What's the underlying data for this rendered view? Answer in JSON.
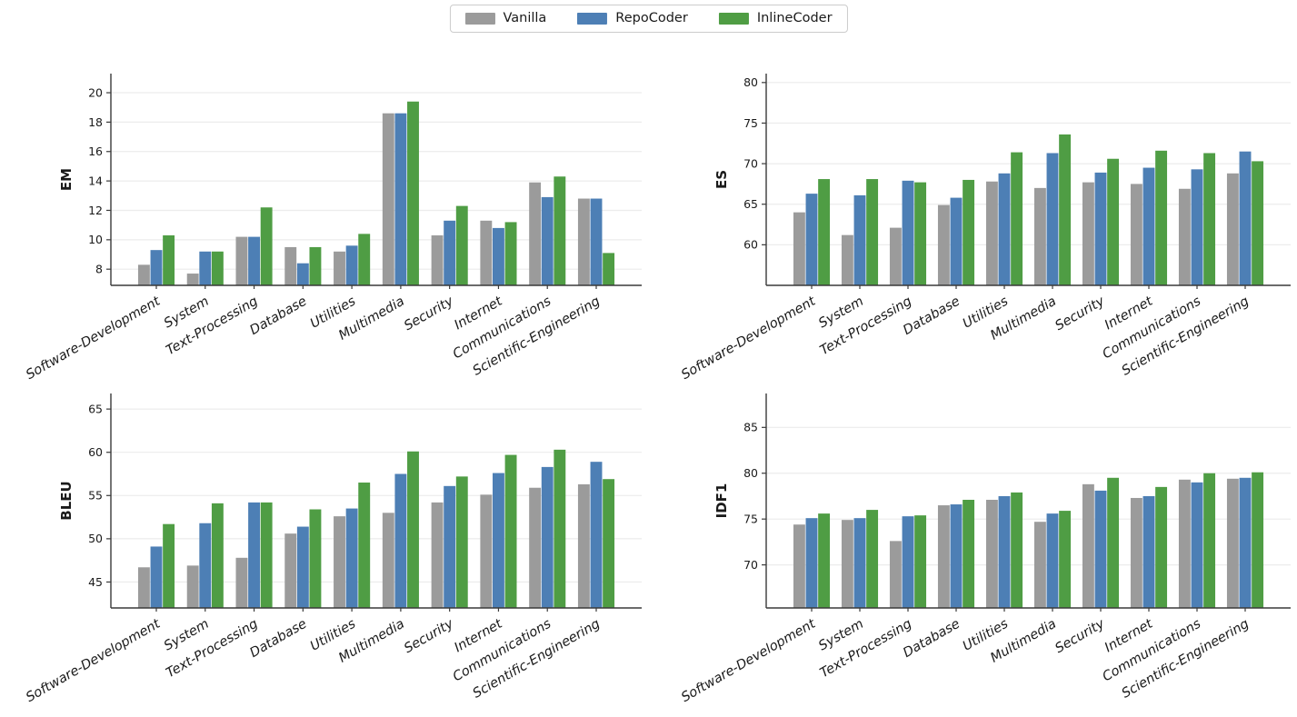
{
  "figure": {
    "background": "#ffffff"
  },
  "legend": {
    "items": [
      {
        "label": "Vanilla",
        "color": "#9b9b9b"
      },
      {
        "label": "RepoCoder",
        "color": "#4d7fb5"
      },
      {
        "label": "InlineCoder",
        "color": "#4f9d44"
      }
    ]
  },
  "style_colors": {
    "grid": "#ececec",
    "spine": "#3a3a3a",
    "tick_text": "#1a1a1a"
  },
  "chart_data": [
    {
      "type": "bar",
      "ylabel": "EM",
      "categories": [
        "Software-Development",
        "System",
        "Text-Processing",
        "Database",
        "Utilities",
        "Multimedia",
        "Security",
        "Internet",
        "Communications",
        "Scientific-Engineering"
      ],
      "series": [
        {
          "name": "Vanilla",
          "color": "#9b9b9b",
          "values": [
            8.3,
            7.7,
            10.2,
            9.5,
            9.2,
            18.6,
            10.3,
            11.3,
            13.9,
            12.8
          ]
        },
        {
          "name": "RepoCoder",
          "color": "#4d7fb5",
          "values": [
            9.3,
            9.2,
            10.2,
            8.4,
            9.6,
            18.6,
            11.3,
            10.8,
            12.9,
            12.8
          ]
        },
        {
          "name": "InlineCoder",
          "color": "#4f9d44",
          "values": [
            10.3,
            9.2,
            12.2,
            9.5,
            10.4,
            19.4,
            12.3,
            11.2,
            14.3,
            9.1
          ]
        }
      ],
      "ylim": [
        6.9,
        21.3
      ],
      "yticks": [
        8,
        10,
        12,
        14,
        16,
        18,
        20
      ],
      "grid": true,
      "legend_position": "figure-top-center"
    },
    {
      "type": "bar",
      "ylabel": "ES",
      "categories": [
        "Software-Development",
        "System",
        "Text-Processing",
        "Database",
        "Utilities",
        "Multimedia",
        "Security",
        "Internet",
        "Communications",
        "Scientific-Engineering"
      ],
      "series": [
        {
          "name": "Vanilla",
          "color": "#9b9b9b",
          "values": [
            64.0,
            61.2,
            62.1,
            64.9,
            67.8,
            67.0,
            67.7,
            67.5,
            66.9,
            68.8
          ]
        },
        {
          "name": "RepoCoder",
          "color": "#4d7fb5",
          "values": [
            66.3,
            66.1,
            67.9,
            65.8,
            68.8,
            71.3,
            68.9,
            69.5,
            69.3,
            71.5
          ]
        },
        {
          "name": "InlineCoder",
          "color": "#4f9d44",
          "values": [
            68.1,
            68.1,
            67.7,
            68.0,
            71.4,
            73.6,
            70.6,
            71.6,
            71.3,
            70.3
          ]
        }
      ],
      "ylim": [
        55,
        81.1
      ],
      "yticks": [
        60,
        65,
        70,
        75,
        80
      ],
      "grid": true,
      "legend_position": "figure-top-center"
    },
    {
      "type": "bar",
      "ylabel": "BLEU",
      "categories": [
        "Software-Development",
        "System",
        "Text-Processing",
        "Database",
        "Utilities",
        "Multimedia",
        "Security",
        "Internet",
        "Communications",
        "Scientific-Engineering"
      ],
      "series": [
        {
          "name": "Vanilla",
          "color": "#9b9b9b",
          "values": [
            46.7,
            46.9,
            47.8,
            50.6,
            52.6,
            53.0,
            54.2,
            55.1,
            55.9,
            56.3
          ]
        },
        {
          "name": "RepoCoder",
          "color": "#4d7fb5",
          "values": [
            49.1,
            51.8,
            54.2,
            51.4,
            53.5,
            57.5,
            56.1,
            57.6,
            58.3,
            58.9
          ]
        },
        {
          "name": "InlineCoder",
          "color": "#4f9d44",
          "values": [
            51.7,
            54.1,
            54.2,
            53.4,
            56.5,
            60.1,
            57.2,
            59.7,
            60.3,
            56.9
          ]
        }
      ],
      "ylim": [
        42,
        66.8
      ],
      "yticks": [
        45,
        50,
        55,
        60,
        65
      ],
      "grid": true,
      "legend_position": "figure-top-center"
    },
    {
      "type": "bar",
      "ylabel": "IDF1",
      "categories": [
        "Software-Development",
        "System",
        "Text-Processing",
        "Database",
        "Utilities",
        "Multimedia",
        "Security",
        "Internet",
        "Communications",
        "Scientific-Engineering"
      ],
      "series": [
        {
          "name": "Vanilla",
          "color": "#9b9b9b",
          "values": [
            74.4,
            74.9,
            72.6,
            76.5,
            77.1,
            74.7,
            78.8,
            77.3,
            79.3,
            79.4
          ]
        },
        {
          "name": "RepoCoder",
          "color": "#4d7fb5",
          "values": [
            75.1,
            75.1,
            75.3,
            76.6,
            77.5,
            75.6,
            78.1,
            77.5,
            79.0,
            79.5
          ]
        },
        {
          "name": "InlineCoder",
          "color": "#4f9d44",
          "values": [
            75.6,
            76.0,
            75.4,
            77.1,
            77.9,
            75.9,
            79.5,
            78.5,
            80.0,
            80.1
          ]
        }
      ],
      "ylim": [
        65.3,
        88.7
      ],
      "yticks": [
        70,
        75,
        80,
        85
      ],
      "grid": true,
      "legend_position": "figure-top-center"
    }
  ]
}
